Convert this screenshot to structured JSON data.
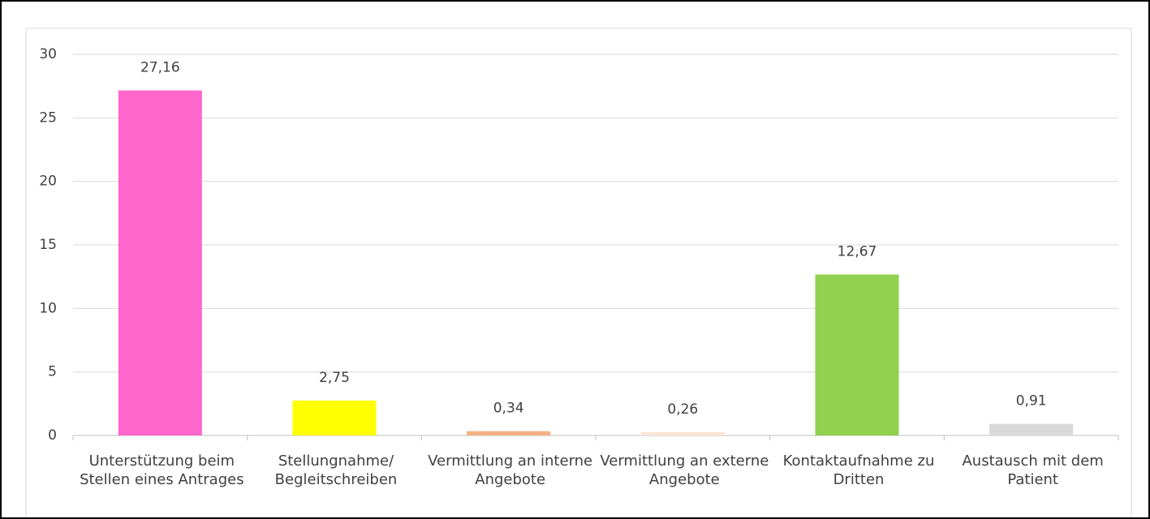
{
  "chart_data": {
    "type": "bar",
    "categories": [
      "Unterstützung beim Stellen eines Antrages",
      "Stellungnahme/ Begleitschreiben",
      "Vermittlung an interne Angebote",
      "Vermittlung an externe Angebote",
      "Kontaktaufnahme zu Dritten",
      "Austausch mit dem Patient"
    ],
    "values": [
      27.16,
      2.75,
      0.34,
      0.26,
      12.67,
      0.91
    ],
    "value_labels": [
      "27,16",
      "2,75",
      "0,34",
      "0,26",
      "12,67",
      "0,91"
    ],
    "colors": [
      "#ff66cc",
      "#ffff00",
      "#f4b183",
      "#fbe5d6",
      "#92d050",
      "#d9d9d9"
    ],
    "ylim": [
      0,
      30
    ],
    "yticks": [
      0,
      5,
      10,
      15,
      20,
      25,
      30
    ],
    "grid": true
  }
}
